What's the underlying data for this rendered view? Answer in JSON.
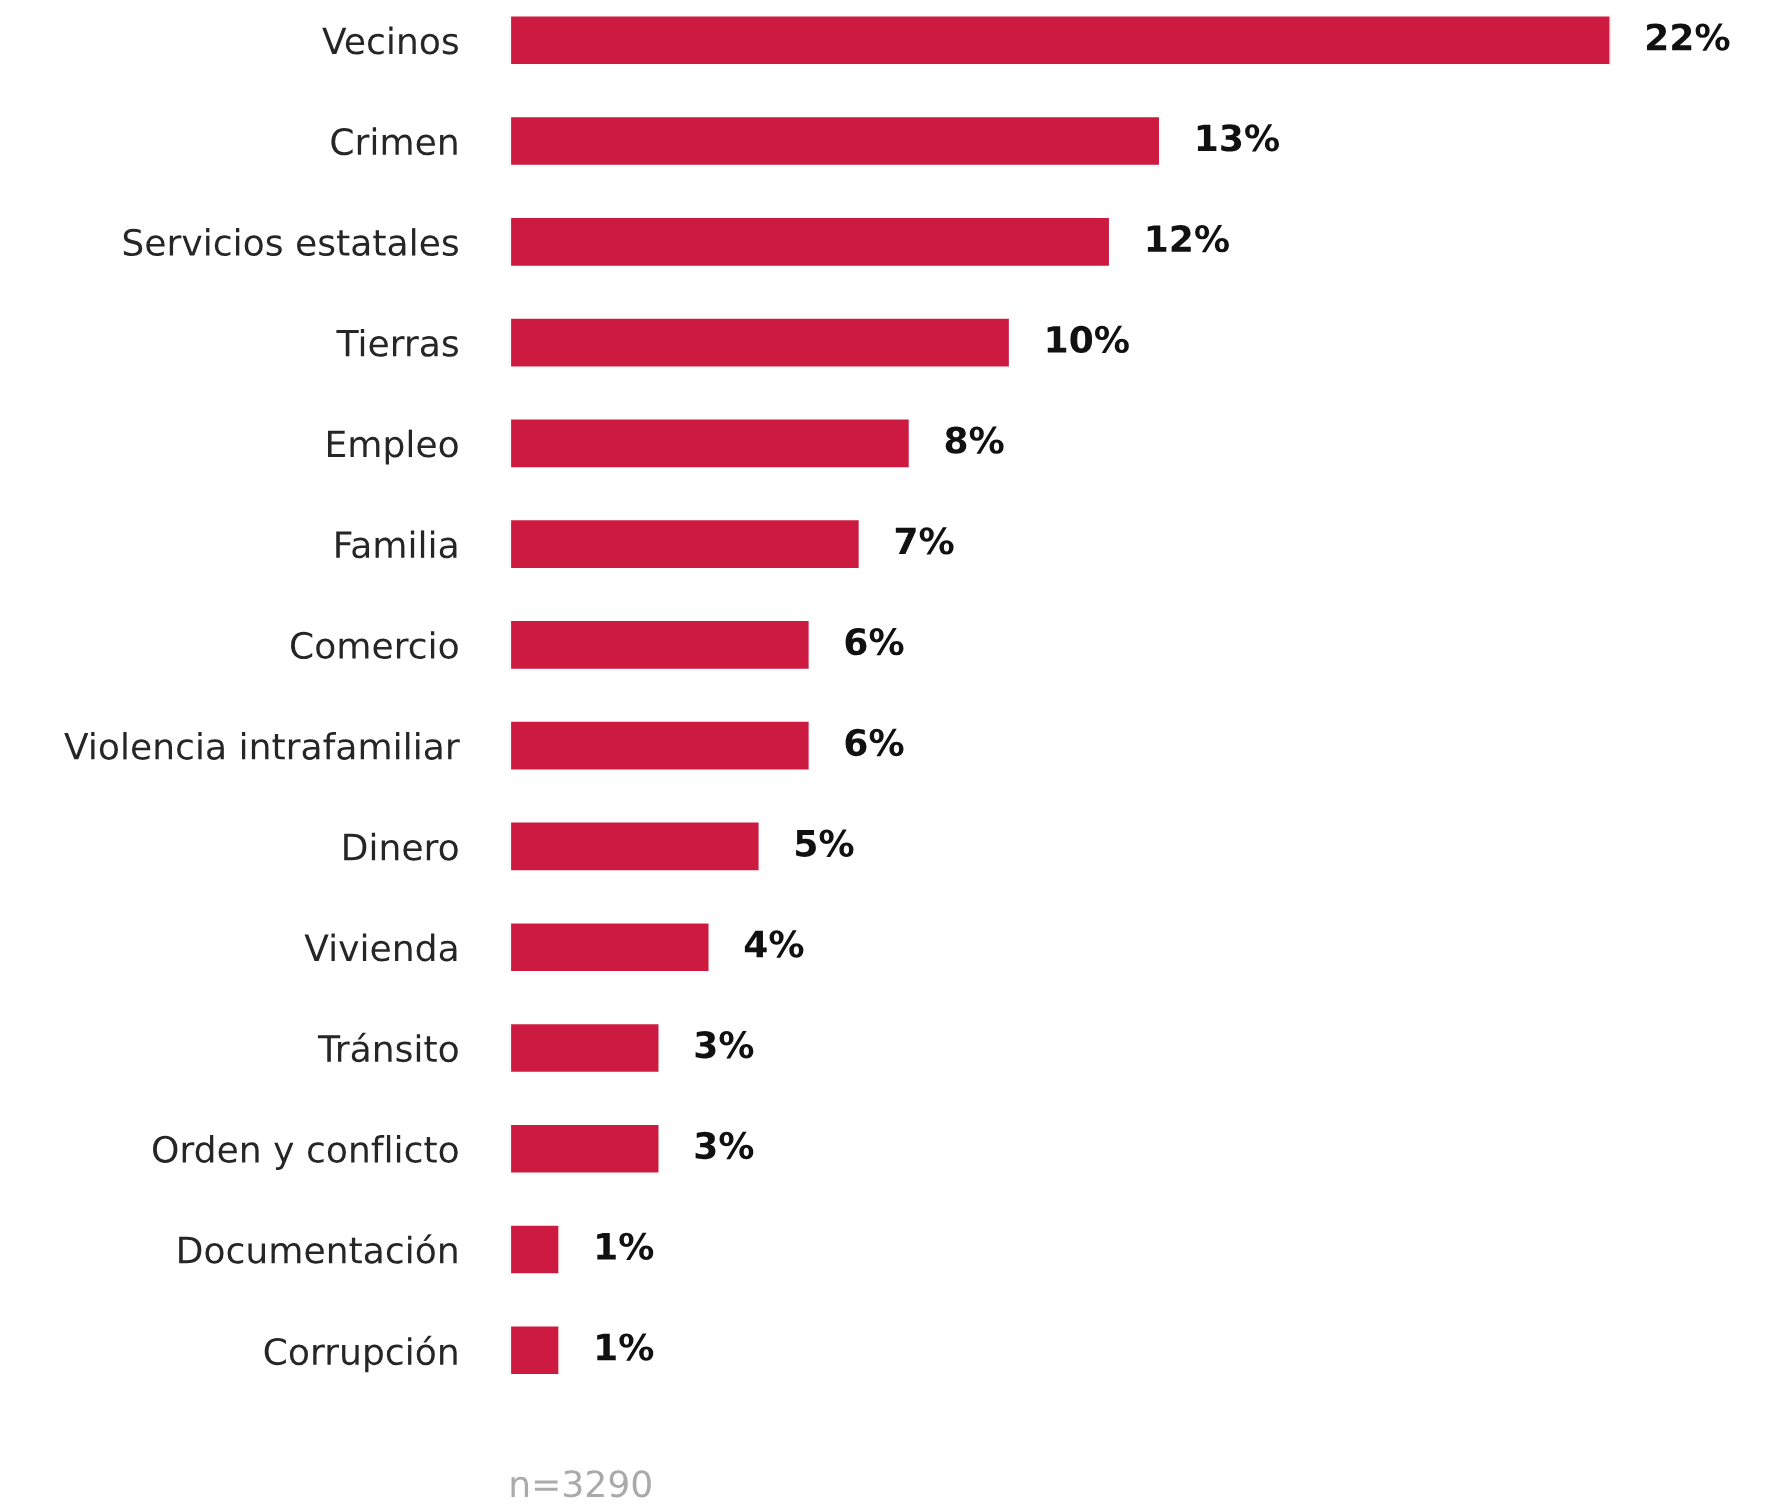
{
  "chart_data": {
    "type": "bar",
    "orientation": "horizontal",
    "categories": [
      "Vecinos",
      "Crimen",
      "Servicios estatales",
      "Tierras",
      "Empleo",
      "Familia",
      "Comercio",
      "Violencia intrafamiliar",
      "Dinero",
      "Vivienda",
      "Tránsito",
      "Orden y conflicto",
      "Documentación",
      "Corrupción"
    ],
    "values": [
      22,
      13,
      12,
      10,
      8,
      7,
      6,
      6,
      5,
      4,
      3,
      3,
      1,
      1
    ],
    "value_labels": [
      "22%",
      "13%",
      "12%",
      "10%",
      "8%",
      "7%",
      "6%",
      "6%",
      "5%",
      "4%",
      "3%",
      "3%",
      "1%",
      "1%"
    ],
    "color": "#cc1a40",
    "grid": false,
    "legend": false,
    "annotations": [
      "n=3290"
    ]
  }
}
